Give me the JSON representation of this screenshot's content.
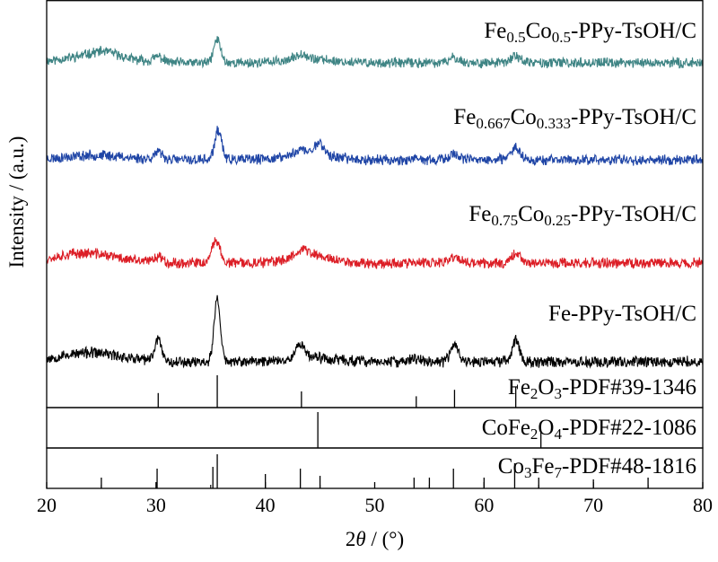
{
  "chart_data": {
    "type": "line",
    "xlabel": {
      "pre": "2",
      "var": "θ",
      "post": " / (°)"
    },
    "ylabel": "Intensity / (a.u.)",
    "xlim": [
      20,
      80
    ],
    "xticks": [
      20,
      30,
      40,
      50,
      60,
      70,
      80
    ],
    "series": [
      {
        "name": "Fe0.5Co0.5-PPy-TsOH/C",
        "label_parts": [
          [
            "Fe",
            ""
          ],
          [
            "0.5",
            "sub"
          ],
          [
            "Co",
            ""
          ],
          [
            "0.5",
            "sub"
          ],
          [
            "-PPy-TsOH/C",
            ""
          ]
        ],
        "color": "#3e8484",
        "baseline": 0.0,
        "noise": 3.0,
        "seed": 11,
        "peaks": [
          [
            25.2,
            5,
            1.6
          ],
          [
            30.2,
            6,
            0.6
          ],
          [
            35.6,
            26,
            0.45
          ],
          [
            43.3,
            7,
            0.7
          ],
          [
            57.3,
            6,
            0.6
          ],
          [
            62.9,
            8,
            0.6
          ]
        ],
        "humps": [
          [
            24.5,
            8,
            4
          ],
          [
            44,
            4,
            3
          ]
        ]
      },
      {
        "name": "Fe0.667Co0.333-PPy-TsOH/C",
        "label_parts": [
          [
            "Fe",
            ""
          ],
          [
            "0.667",
            "sub"
          ],
          [
            "Co",
            ""
          ],
          [
            "0.333",
            "sub"
          ],
          [
            "-PPy-TsOH/C",
            ""
          ]
        ],
        "color": "#1f45a6",
        "baseline": 0.0,
        "noise": 3.2,
        "seed": 23,
        "peaks": [
          [
            30.2,
            7,
            0.6
          ],
          [
            35.7,
            33,
            0.45
          ],
          [
            43.2,
            6,
            0.7
          ],
          [
            44.9,
            14,
            0.6
          ],
          [
            57.3,
            7,
            0.6
          ],
          [
            62.9,
            14,
            0.6
          ]
        ],
        "humps": [
          [
            24.5,
            5,
            4
          ],
          [
            44,
            6,
            3
          ]
        ]
      },
      {
        "name": "Fe0.75Co0.25-PPy-TsOH/C",
        "label_parts": [
          [
            "Fe",
            ""
          ],
          [
            "0.75",
            "sub"
          ],
          [
            "Co",
            ""
          ],
          [
            "0.25",
            "sub"
          ],
          [
            "-PPy-TsOH/C",
            ""
          ]
        ],
        "color": "#dc1e26",
        "baseline": 0.0,
        "noise": 3.2,
        "seed": 37,
        "peaks": [
          [
            30.2,
            7,
            0.6
          ],
          [
            35.5,
            26,
            0.5
          ],
          [
            43.3,
            7,
            0.8
          ],
          [
            57.3,
            7,
            0.6
          ],
          [
            62.9,
            11,
            0.6
          ]
        ],
        "humps": [
          [
            23.5,
            11,
            4
          ],
          [
            44,
            9,
            2.5
          ]
        ]
      },
      {
        "name": "Fe-PPy-TsOH/C",
        "label_parts": [
          [
            "Fe-PPy-TsOH/C",
            ""
          ]
        ],
        "color": "#000000",
        "baseline": 0.0,
        "noise": 3.4,
        "seed": 53,
        "peaks": [
          [
            30.2,
            25,
            0.45
          ],
          [
            35.6,
            70,
            0.4
          ],
          [
            43.2,
            15,
            0.6
          ],
          [
            53.8,
            4,
            0.6
          ],
          [
            57.3,
            20,
            0.5
          ],
          [
            62.9,
            24,
            0.5
          ]
        ],
        "humps": [
          [
            24.0,
            10,
            4
          ],
          [
            44,
            5,
            3
          ]
        ]
      }
    ],
    "references": [
      {
        "name": "Fe2O3-PDF#39-1346",
        "label_parts": [
          [
            "Fe",
            ""
          ],
          [
            "2",
            "sub"
          ],
          [
            "O",
            ""
          ],
          [
            "3",
            "sub"
          ],
          [
            "-PDF#39-1346",
            ""
          ]
        ],
        "lines": [
          [
            30.2,
            0.45
          ],
          [
            35.6,
            1.0
          ],
          [
            43.3,
            0.5
          ],
          [
            53.8,
            0.35
          ],
          [
            57.3,
            0.55
          ],
          [
            62.9,
            0.65
          ]
        ]
      },
      {
        "name": "CoFe2O4-PDF#22-1086",
        "label_parts": [
          [
            "CoFe",
            ""
          ],
          [
            "2",
            "sub"
          ],
          [
            "O",
            ""
          ],
          [
            "4",
            "sub"
          ],
          [
            "-PDF#22-1086",
            ""
          ]
        ],
        "lines": [
          [
            44.8,
            1.0
          ],
          [
            65.2,
            0.45
          ]
        ]
      },
      {
        "name": "Co3Fe7-PDF#48-1816",
        "label_parts": [
          [
            "Co",
            ""
          ],
          [
            "3",
            "sub"
          ],
          [
            "Fe",
            ""
          ],
          [
            "7",
            "sub"
          ],
          [
            "-PDF#48-1816",
            ""
          ]
        ],
        "lines": [
          [
            25.0,
            0.3
          ],
          [
            30.1,
            0.55
          ],
          [
            35.2,
            0.6
          ],
          [
            35.6,
            0.95
          ],
          [
            40.0,
            0.4
          ],
          [
            43.2,
            0.55
          ],
          [
            45.0,
            0.35
          ],
          [
            53.6,
            0.3
          ],
          [
            55.0,
            0.3
          ],
          [
            57.2,
            0.55
          ],
          [
            60.0,
            0.3
          ],
          [
            62.8,
            0.7
          ],
          [
            65.0,
            0.3
          ],
          [
            70.0,
            0.25
          ],
          [
            75.0,
            0.3
          ]
        ]
      }
    ],
    "grid": false,
    "legend": "inline labels, right side"
  }
}
